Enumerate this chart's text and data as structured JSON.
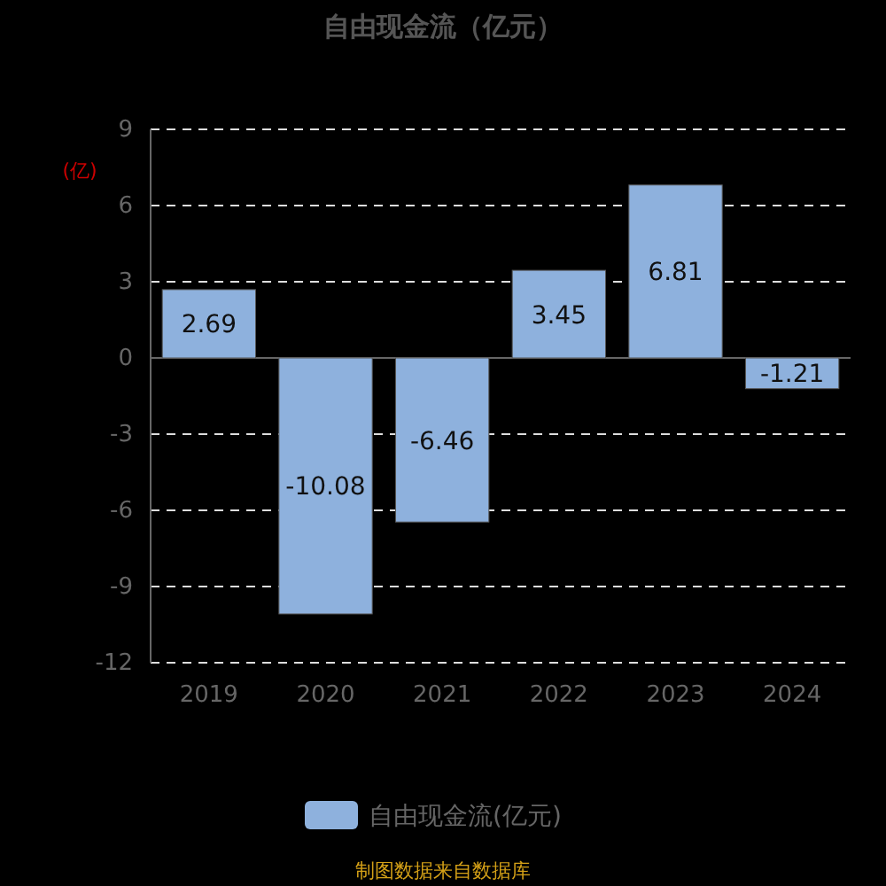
{
  "chart_data": {
    "type": "bar",
    "title": "自由现金流（亿元）",
    "ylabel": "(亿)",
    "categories": [
      "2019",
      "2020",
      "2021",
      "2022",
      "2023",
      "2024"
    ],
    "series": [
      {
        "name": "自由现金流(亿元)",
        "color": "#8eb1dd",
        "values": [
          2.69,
          -10.08,
          -6.46,
          3.45,
          6.81,
          -1.21
        ]
      }
    ],
    "ylim": [
      -12,
      9
    ],
    "yticks": [
      -12,
      -9,
      -6,
      -3,
      0,
      3,
      6,
      9
    ],
    "grid": "y",
    "legend": "bottom",
    "data_labels": true,
    "annotations": [
      "制图数据来自数据库"
    ]
  }
}
